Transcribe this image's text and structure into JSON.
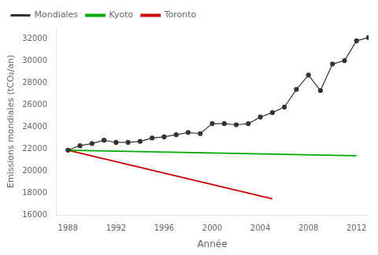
{
  "chart_data": {
    "type": "line",
    "xlabel": "Année",
    "ylabel": "Emissions mondiales (tCO₂/an)",
    "xlim": [
      1987,
      2013
    ],
    "ylim": [
      16000,
      33000
    ],
    "xticks": [
      1988,
      1992,
      1996,
      2000,
      2004,
      2008,
      2012
    ],
    "yticks": [
      16000,
      18000,
      20000,
      22000,
      24000,
      26000,
      28000,
      30000,
      32000
    ],
    "grid": false,
    "legend": "upper left",
    "series": [
      {
        "name": "Mondiales",
        "color": "#333333",
        "marker": "circle",
        "x": [
          1988,
          1989,
          1990,
          1991,
          1992,
          1993,
          1994,
          1995,
          1996,
          1997,
          1998,
          1999,
          2000,
          2001,
          2002,
          2003,
          2004,
          2005,
          2006,
          2007,
          2008,
          2009,
          2010,
          2011,
          2012,
          2013
        ],
        "values": [
          21900,
          22300,
          22500,
          22800,
          22600,
          22600,
          22700,
          23000,
          23100,
          23300,
          23500,
          23400,
          24300,
          24300,
          24200,
          24300,
          24900,
          25300,
          25800,
          27400,
          28700,
          27300,
          29700,
          30000,
          31800,
          32100
        ]
      },
      {
        "name": "Kyoto",
        "color": "#00aa00",
        "x": [
          1988,
          2012
        ],
        "values": [
          21900,
          21400
        ]
      },
      {
        "name": "Toronto",
        "color": "#cc0000",
        "x": [
          1988,
          2005
        ],
        "values": [
          21900,
          17500
        ]
      }
    ]
  }
}
